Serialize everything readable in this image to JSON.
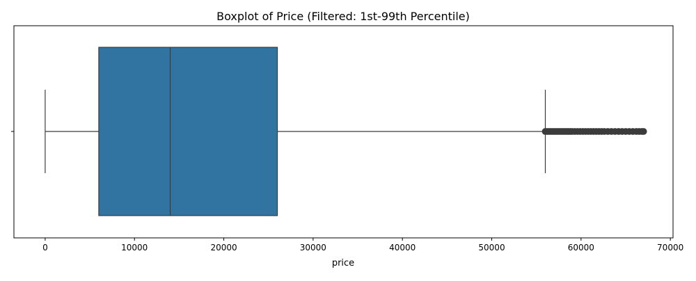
{
  "chart_data": {
    "type": "boxplot",
    "title": "Boxplot of Price (Filtered: 1st-99th Percentile)",
    "xlabel": "price",
    "ylabel": "",
    "xlim": [
      -3500,
      70300
    ],
    "xticks": [
      0,
      10000,
      20000,
      30000,
      40000,
      50000,
      60000,
      70000
    ],
    "xtick_labels": [
      "0",
      "10000",
      "20000",
      "30000",
      "40000",
      "50000",
      "60000",
      "70000"
    ],
    "grid": false,
    "box": {
      "whisker_low": 0,
      "q1": 6000,
      "median": 14000,
      "q3": 26000,
      "whisker_high": 56000,
      "fill_color": "#3274a1",
      "edge_color": "#3b3b3b"
    },
    "outliers": [
      56000,
      56200,
      56400,
      56600,
      56800,
      57000,
      57200,
      57400,
      57600,
      57800,
      58000,
      58200,
      58400,
      58600,
      58800,
      59000,
      59300,
      59600,
      59900,
      60200,
      60500,
      60800,
      61100,
      61400,
      61700,
      62000,
      62300,
      62600,
      63000,
      63400,
      63800,
      64200,
      64600,
      65000,
      65400,
      65800,
      66200,
      66500,
      66800,
      67000
    ],
    "outlier_color": "#3b3b3b"
  }
}
